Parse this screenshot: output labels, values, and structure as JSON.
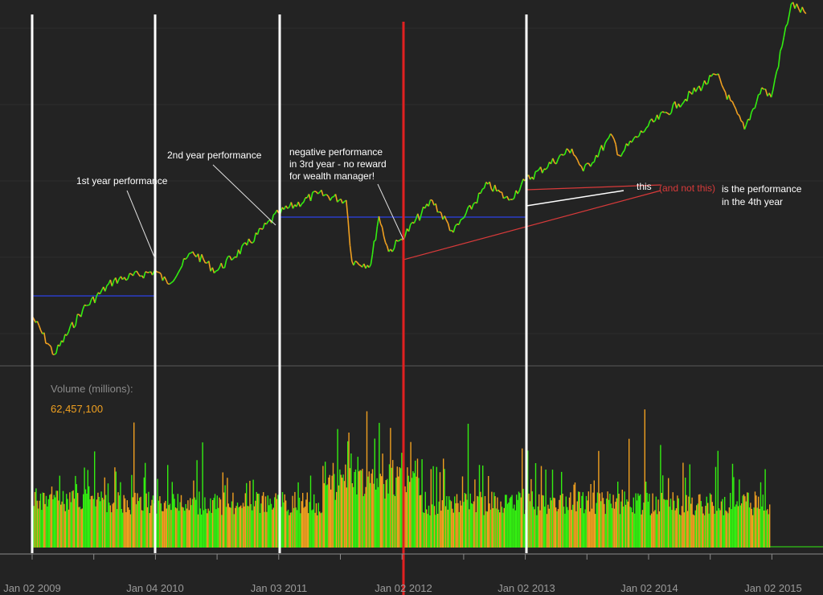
{
  "colors": {
    "background": "#232323",
    "up_bar": "#33ee11",
    "down_bar": "#f0a020",
    "marker_white": "#ffffff",
    "marker_red": "#e02020",
    "baseline_blue": "#2a3cc8",
    "trend_red": "#d83a3a",
    "axis_text": "#9a9a9a"
  },
  "chart_data": {
    "type": "line",
    "title": "",
    "x_tick_labels": [
      "Jan 02 2009",
      "Jan 04 2010",
      "Jan 03 2011",
      "Jan 02 2012",
      "Jan 02 2013",
      "Jan 02 2014",
      "Jan 02 2015"
    ],
    "grid": true,
    "price_series": {
      "dates": [
        "2009-01-02",
        "2009-03-09",
        "2009-06-01",
        "2009-09-01",
        "2010-01-04",
        "2010-02-08",
        "2010-04-23",
        "2010-07-01",
        "2010-10-01",
        "2011-01-03",
        "2011-04-29",
        "2011-07-22",
        "2011-08-08",
        "2011-10-03",
        "2011-10-27",
        "2011-11-25",
        "2012-01-02",
        "2012-04-02",
        "2012-06-04",
        "2012-09-14",
        "2012-11-15",
        "2013-01-02",
        "2013-05-21",
        "2013-06-24",
        "2013-09-18",
        "2013-10-08",
        "2014-01-02",
        "2014-04-02",
        "2014-07-24",
        "2014-10-15",
        "2014-12-05",
        "2015-01-02",
        "2015-03-02",
        "2015-04-15"
      ],
      "values": [
        0.86,
        0.74,
        0.88,
        0.97,
        1.0,
        0.96,
        1.06,
        1.0,
        1.08,
        1.18,
        1.24,
        1.22,
        1.03,
        1.02,
        1.17,
        1.06,
        1.1,
        1.22,
        1.12,
        1.27,
        1.22,
        1.28,
        1.38,
        1.31,
        1.42,
        1.36,
        1.45,
        1.52,
        1.61,
        1.44,
        1.57,
        1.54,
        1.83,
        1.8
      ],
      "value_scale_note": ""
    },
    "volume_panel": {
      "title": "Volume (millions):",
      "value": "62,457,100"
    },
    "year_markers": [
      {
        "date": "2009-01-02",
        "color": "white"
      },
      {
        "date": "2010-01-04",
        "color": "white"
      },
      {
        "date": "2011-01-03",
        "color": "white"
      },
      {
        "date": "2012-01-02",
        "color": "red"
      },
      {
        "date": "2013-01-02",
        "color": "white"
      }
    ],
    "annotations": [
      {
        "text": "1st year performance"
      },
      {
        "text": "2nd year performance"
      },
      {
        "text": "negative performance"
      },
      {
        "text": "in 3rd year - no reward"
      },
      {
        "text": "for wealth manager!"
      },
      {
        "text": "this"
      },
      {
        "text": "(and not this)"
      },
      {
        "text": "is the performance"
      },
      {
        "text": "in the 4th year"
      }
    ]
  }
}
